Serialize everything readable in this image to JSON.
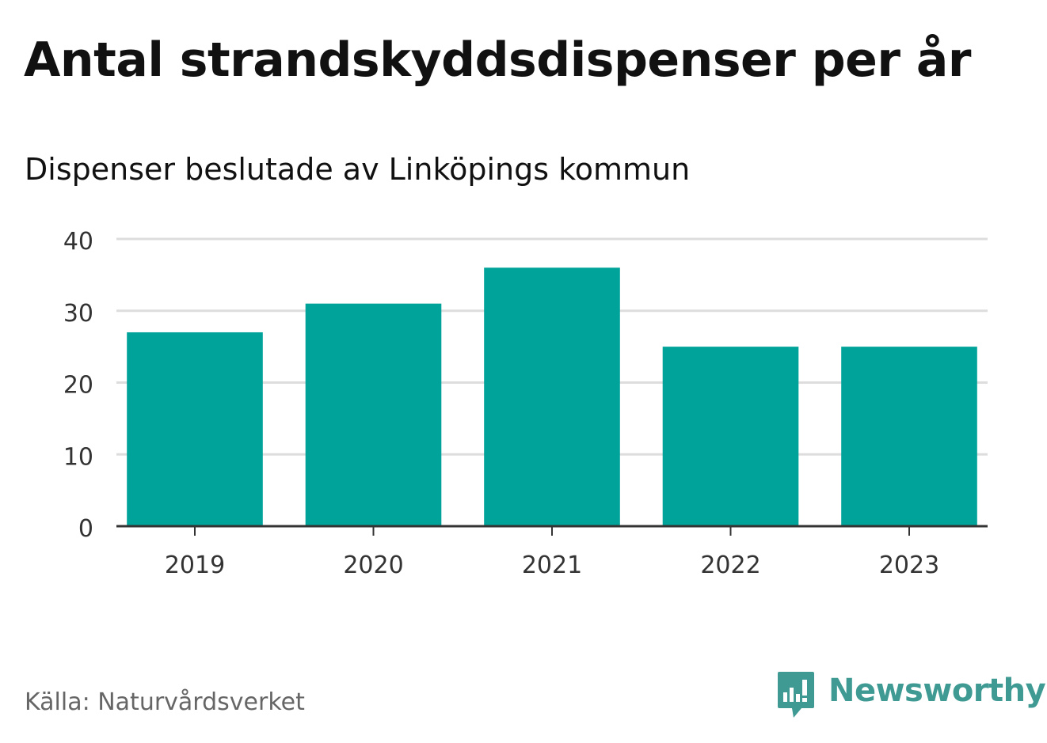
{
  "header": {
    "title": "Antal strandskyddsdispenser per år",
    "subtitle": "Dispenser beslutade av Linköpings kommun"
  },
  "footer": {
    "source": "Källa: Naturvårdsverket",
    "brand_name": "Newsworthy",
    "brand_icon": "chart-bubble-icon"
  },
  "colors": {
    "bar": "#00a39a",
    "grid": "#dddddd",
    "axis": "#333333",
    "brand": "#3e9a93"
  },
  "chart_data": {
    "type": "bar",
    "title": "Antal strandskyddsdispenser per år",
    "subtitle": "Dispenser beslutade av Linköpings kommun",
    "xlabel": "",
    "ylabel": "",
    "categories": [
      "2019",
      "2020",
      "2021",
      "2022",
      "2023"
    ],
    "values": [
      27,
      31,
      36,
      25,
      25
    ],
    "ylim": [
      0,
      40
    ],
    "yticks": [
      0,
      10,
      20,
      30,
      40
    ],
    "grid": true,
    "legend": "none"
  }
}
